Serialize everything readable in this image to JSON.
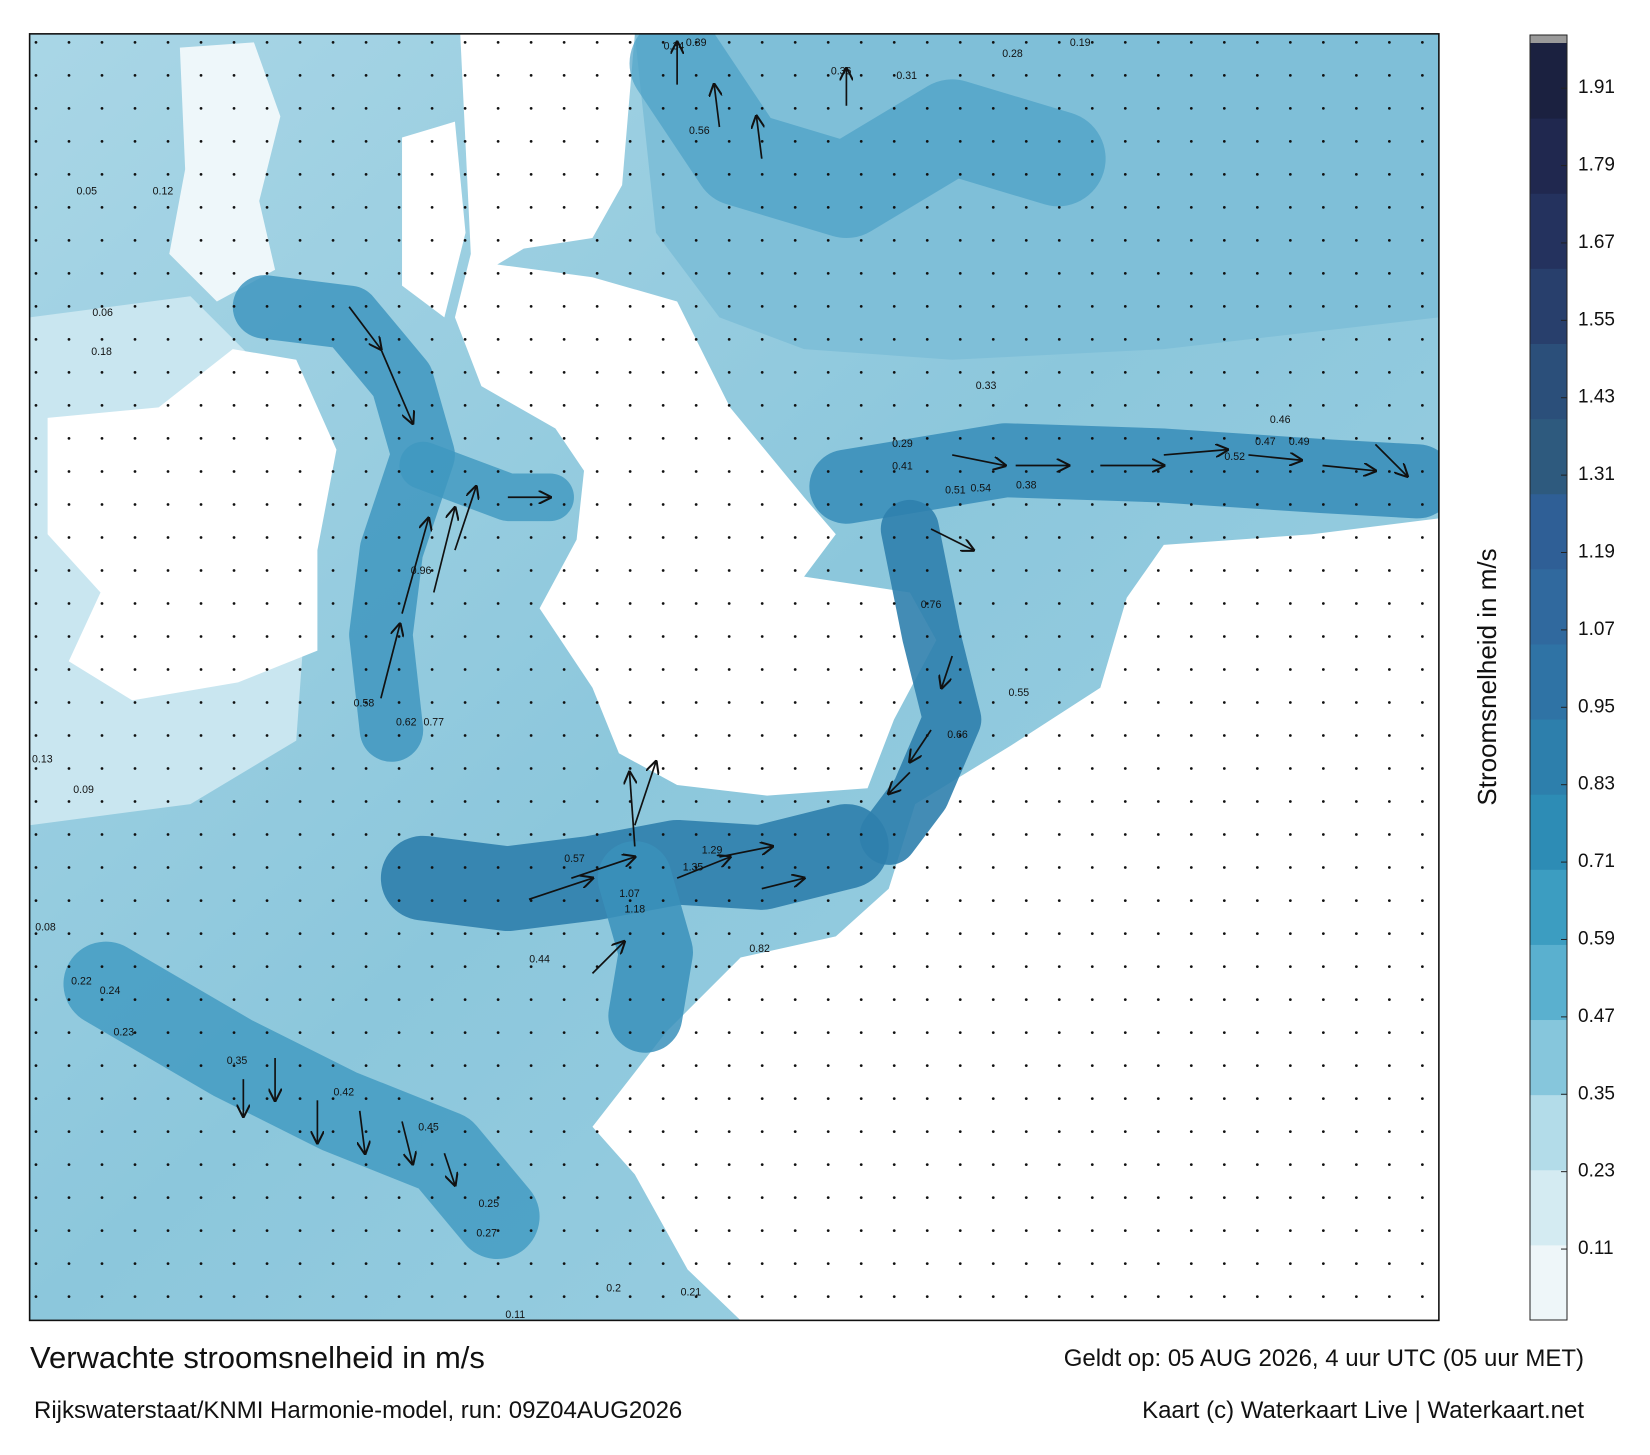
{
  "header": {
    "title": "Verwachte stroomsnelheid in m/s",
    "subtitle": "Rijkswaterstaat/KNMI Harmonie-model, run: 09Z04AUG2026",
    "valid_time": "Geldt op: 05 AUG 2026, 4 uur UTC (05 uur MET)",
    "credit": "Kaart (c) Waterkaart Live | Waterkaart.net"
  },
  "colorbar": {
    "label": "Stroomsnelheid in m/s",
    "lim": [
      0,
      1.98
    ],
    "ticks": [
      0.11,
      0.23,
      0.35,
      0.47,
      0.59,
      0.71,
      0.83,
      0.95,
      1.07,
      1.19,
      1.31,
      1.43,
      1.55,
      1.67,
      1.79,
      1.91
    ],
    "colors": [
      "#eef6f9",
      "#d4ebf2",
      "#b3dce9",
      "#86c6dc",
      "#5ab0cf",
      "#3c9dc1",
      "#2d8cb5",
      "#2d7fac",
      "#2f73a5",
      "#30699e",
      "#2f5f96",
      "#2e5a7e",
      "#2b4f7a",
      "#283f6c",
      "#24325e",
      "#20284f",
      "#1b2140"
    ]
  },
  "map_labels": [
    "0.58",
    "0.62",
    "0.77",
    "0.96",
    "1.07",
    "1.18",
    "1.35",
    "1.29",
    "0.82",
    "0.57",
    "0.44",
    "0.66",
    "0.76",
    "0.55",
    "0.52",
    "0.47",
    "0.49",
    "0.46",
    "0.33",
    "0.41",
    "0.54",
    "0.51",
    "0.38",
    "0.29",
    "0.34",
    "0.39",
    "0.56",
    "0.36",
    "0.31",
    "0.28",
    "0.19",
    "0.35",
    "0.42",
    "0.45",
    "0.25",
    "0.27",
    "0.21",
    "0.2",
    "0.11",
    "0.13",
    "0.09",
    "0.22",
    "0.24",
    "0.23",
    "0.08",
    "0.06",
    "0.18",
    "0.05",
    "0.12"
  ]
}
